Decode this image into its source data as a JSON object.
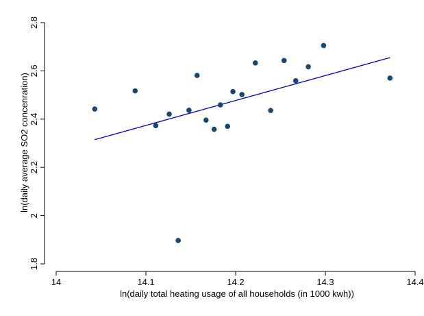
{
  "chart_data": {
    "type": "scatter",
    "xlabel": "ln(daily total heating usage of all households (in 1000 kwh))",
    "ylabel": "ln(daily average SO2 concenration)",
    "xlim": [
      14.0,
      14.4
    ],
    "ylim": [
      1.8,
      2.8
    ],
    "x_ticks": [
      {
        "value": 14.0,
        "label": "14"
      },
      {
        "value": 14.1,
        "label": "14.1"
      },
      {
        "value": 14.2,
        "label": "14.2"
      },
      {
        "value": 14.3,
        "label": "14.3"
      },
      {
        "value": 14.4,
        "label": "14.4"
      }
    ],
    "y_ticks": [
      {
        "value": 1.8,
        "label": "1.8"
      },
      {
        "value": 2.0,
        "label": "2"
      },
      {
        "value": 2.2,
        "label": "2.2"
      },
      {
        "value": 2.4,
        "label": "2.4"
      },
      {
        "value": 2.6,
        "label": "2.6"
      },
      {
        "value": 2.8,
        "label": "2.8"
      }
    ],
    "grid": false,
    "points": [
      {
        "x": 14.043,
        "y": 2.442
      },
      {
        "x": 14.088,
        "y": 2.517
      },
      {
        "x": 14.111,
        "y": 2.373
      },
      {
        "x": 14.126,
        "y": 2.421
      },
      {
        "x": 14.136,
        "y": 1.897
      },
      {
        "x": 14.148,
        "y": 2.437
      },
      {
        "x": 14.157,
        "y": 2.581
      },
      {
        "x": 14.167,
        "y": 2.396
      },
      {
        "x": 14.176,
        "y": 2.358
      },
      {
        "x": 14.183,
        "y": 2.459
      },
      {
        "x": 14.191,
        "y": 2.37
      },
      {
        "x": 14.197,
        "y": 2.514
      },
      {
        "x": 14.207,
        "y": 2.502
      },
      {
        "x": 14.222,
        "y": 2.633
      },
      {
        "x": 14.239,
        "y": 2.436
      },
      {
        "x": 14.254,
        "y": 2.643
      },
      {
        "x": 14.267,
        "y": 2.559
      },
      {
        "x": 14.281,
        "y": 2.617
      },
      {
        "x": 14.298,
        "y": 2.705
      },
      {
        "x": 14.372,
        "y": 2.57
      }
    ],
    "fit_line": {
      "x": [
        14.043,
        14.372
      ],
      "y": [
        2.315,
        2.655
      ]
    },
    "colors": {
      "points": "#1a476f",
      "fit_line": "#0000cc",
      "axis": "#000000"
    }
  }
}
